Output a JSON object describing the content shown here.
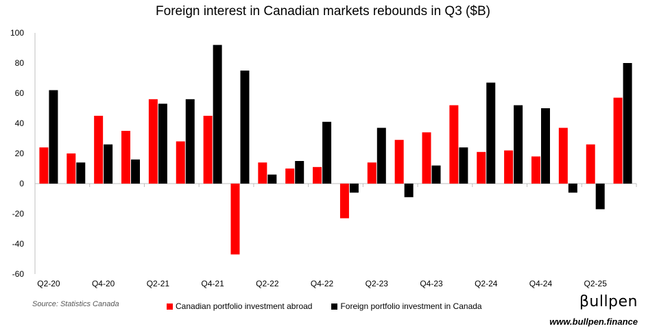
{
  "chart_data": {
    "type": "bar",
    "title": "Foreign interest in Canadian markets rebounds in Q3 ($B)",
    "categories": [
      "Q2-20",
      "Q3-20",
      "Q4-20",
      "Q1-21",
      "Q2-21",
      "Q3-21",
      "Q4-21",
      "Q1-22",
      "Q2-22",
      "Q3-22",
      "Q4-22",
      "Q1-23",
      "Q2-23",
      "Q3-23",
      "Q4-23",
      "Q1-24",
      "Q2-24",
      "Q3-24",
      "Q4-24",
      "Q1-25",
      "Q2-25",
      "Q3-25"
    ],
    "tick_labels": [
      "Q2-20",
      "Q4-20",
      "Q2-21",
      "Q4-21",
      "Q2-22",
      "Q4-22",
      "Q2-23",
      "Q4-23",
      "Q2-24",
      "Q4-24",
      "Q2-25"
    ],
    "series": [
      {
        "name": "Canadian portfolio investment abroad",
        "color": "#ff0000",
        "values": [
          24,
          20,
          45,
          35,
          56,
          28,
          45,
          -47,
          14,
          10,
          11,
          -23,
          14,
          29,
          34,
          52,
          21,
          22,
          18,
          37,
          26,
          57
        ]
      },
      {
        "name": "Foreign portfolio investment in Canada",
        "color": "#000000",
        "values": [
          62,
          14,
          26,
          16,
          53,
          56,
          92,
          75,
          6,
          15,
          41,
          -6,
          37,
          -9,
          12,
          24,
          67,
          52,
          50,
          -6,
          -17,
          80
        ]
      }
    ],
    "ylim": [
      -60,
      100
    ],
    "yticks": [
      -60,
      -40,
      -20,
      0,
      20,
      40,
      60,
      80,
      100
    ],
    "xlabel": "",
    "ylabel": "",
    "grid": false,
    "legend_position": "bottom"
  },
  "source": "Source: Statistics Canada",
  "brand": "βullpen",
  "website": "www.bullpen.finance"
}
